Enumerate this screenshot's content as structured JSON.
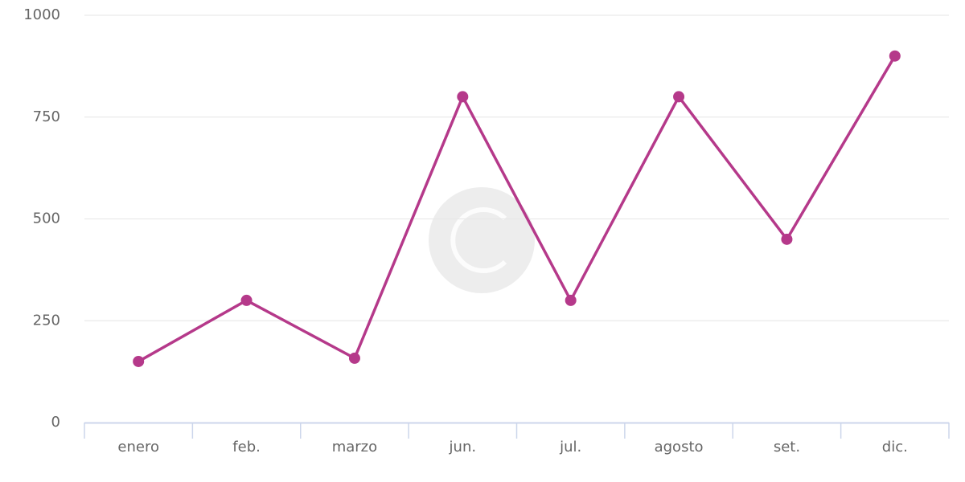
{
  "chart_data": {
    "type": "line",
    "categories": [
      "enero",
      "feb.",
      "marzo",
      "jun.",
      "jul.",
      "agosto",
      "set.",
      "dic."
    ],
    "values": [
      150,
      300,
      158,
      800,
      300,
      800,
      450,
      900
    ],
    "color": "#b5398a",
    "ylim": [
      0,
      1000
    ],
    "yticks": [
      0,
      250,
      500,
      750,
      1000
    ],
    "grid": true
  }
}
